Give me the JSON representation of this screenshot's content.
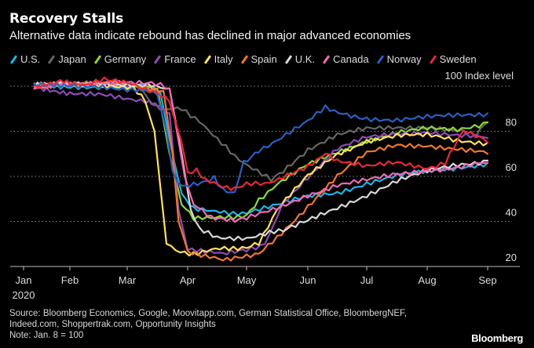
{
  "header": {
    "title": "Recovery Stalls",
    "subtitle": "Alternative data indicate rebound has declined in major advanced economies"
  },
  "footer": {
    "source_line1": "Source: Bloomberg Economics, Google, Moovitapp.com, German Statistical Office, BloombergNEF,",
    "source_line2": "Indeed.com, Shoppertrak.com, Opportunity Insights",
    "note": "Note: Jan. 8 = 100",
    "brand": "Bloomberg"
  },
  "chart_data": {
    "type": "line",
    "title": "Recovery Stalls",
    "subtitle": "Alternative data indicate rebound has declined in major advanced economies",
    "xlabel": "",
    "ylabel": "Index level",
    "unit_label": "100 Index level",
    "x_unit": "month index (0 = Jan 1, 2020; 8 = Sep 1, 2020)",
    "x_ticks": [
      "Jan",
      "Feb",
      "Mar",
      "Apr",
      "May",
      "Jun",
      "Jul",
      "Aug",
      "Sep"
    ],
    "x_year_label": "2020",
    "y_ticks": [
      20,
      40,
      60,
      80,
      100
    ],
    "y_tick_labels": [
      "20",
      "40",
      "60",
      "80",
      "100"
    ],
    "ylim": [
      20,
      100
    ],
    "grid": "horizontal-dotted",
    "legend_position": "top",
    "series": [
      {
        "name": "U.S.",
        "color": "#1fb3e6",
        "points": [
          [
            0.23,
            100
          ],
          [
            0.8,
            100
          ],
          [
            1.5,
            100
          ],
          [
            2.0,
            100
          ],
          [
            2.3,
            100
          ],
          [
            2.55,
            97
          ],
          [
            2.75,
            70
          ],
          [
            2.9,
            52
          ],
          [
            3.1,
            46
          ],
          [
            3.4,
            44
          ],
          [
            3.7,
            44
          ],
          [
            4.0,
            44
          ],
          [
            4.5,
            47
          ],
          [
            5.0,
            51
          ],
          [
            5.5,
            53
          ],
          [
            6.0,
            57
          ],
          [
            6.5,
            60
          ],
          [
            7.0,
            62
          ],
          [
            7.5,
            64
          ],
          [
            8.0,
            66
          ]
        ]
      },
      {
        "name": "Japan",
        "color": "#666666",
        "points": [
          [
            0.23,
            100
          ],
          [
            0.8,
            101
          ],
          [
            1.5,
            101
          ],
          [
            2.0,
            100
          ],
          [
            2.2,
            99
          ],
          [
            2.4,
            92
          ],
          [
            2.6,
            89
          ],
          [
            2.9,
            90
          ],
          [
            3.2,
            85
          ],
          [
            3.5,
            76
          ],
          [
            3.8,
            69
          ],
          [
            4.1,
            64
          ],
          [
            4.4,
            58
          ],
          [
            4.6,
            62
          ],
          [
            5.0,
            72
          ],
          [
            5.5,
            78
          ],
          [
            6.0,
            81
          ],
          [
            6.5,
            82
          ],
          [
            7.0,
            82
          ],
          [
            7.5,
            80
          ],
          [
            7.8,
            78
          ],
          [
            8.0,
            84
          ]
        ]
      },
      {
        "name": "Germany",
        "color": "#8ed63b",
        "points": [
          [
            0.23,
            100
          ],
          [
            0.8,
            101
          ],
          [
            1.5,
            101
          ],
          [
            2.0,
            101
          ],
          [
            2.2,
            100
          ],
          [
            2.5,
            99
          ],
          [
            2.7,
            70
          ],
          [
            2.9,
            48
          ],
          [
            3.1,
            42
          ],
          [
            3.4,
            41
          ],
          [
            3.7,
            42
          ],
          [
            4.0,
            43
          ],
          [
            4.2,
            50
          ],
          [
            4.5,
            56
          ],
          [
            5.0,
            65
          ],
          [
            5.5,
            71
          ],
          [
            6.0,
            76
          ],
          [
            6.5,
            79
          ],
          [
            7.0,
            81
          ],
          [
            7.5,
            81
          ],
          [
            8.0,
            84
          ]
        ]
      },
      {
        "name": "France",
        "color": "#8e4ab8",
        "points": [
          [
            0.23,
            100
          ],
          [
            0.5,
            99
          ],
          [
            1.0,
            97
          ],
          [
            1.5,
            96
          ],
          [
            2.0,
            94
          ],
          [
            2.3,
            94
          ],
          [
            2.5,
            92
          ],
          [
            2.7,
            88
          ],
          [
            2.85,
            45
          ],
          [
            3.0,
            28
          ],
          [
            3.3,
            26
          ],
          [
            3.6,
            26
          ],
          [
            4.0,
            27
          ],
          [
            4.3,
            30
          ],
          [
            4.6,
            48
          ],
          [
            5.0,
            60
          ],
          [
            5.5,
            72
          ],
          [
            6.0,
            77
          ],
          [
            6.5,
            79
          ],
          [
            7.0,
            80
          ],
          [
            7.5,
            78
          ],
          [
            8.0,
            77
          ]
        ]
      },
      {
        "name": "Italy",
        "color": "#ffe066",
        "points": [
          [
            0.23,
            100
          ],
          [
            0.8,
            101
          ],
          [
            1.5,
            101
          ],
          [
            2.0,
            100
          ],
          [
            2.1,
            99
          ],
          [
            2.3,
            93
          ],
          [
            2.45,
            80
          ],
          [
            2.55,
            55
          ],
          [
            2.65,
            30
          ],
          [
            2.8,
            27
          ],
          [
            3.1,
            26
          ],
          [
            3.4,
            27
          ],
          [
            3.7,
            28
          ],
          [
            4.0,
            29
          ],
          [
            4.2,
            31
          ],
          [
            4.5,
            45
          ],
          [
            5.0,
            60
          ],
          [
            5.5,
            70
          ],
          [
            6.0,
            76
          ],
          [
            6.5,
            78
          ],
          [
            7.0,
            78
          ],
          [
            7.5,
            76
          ],
          [
            8.0,
            75
          ]
        ]
      },
      {
        "name": "Spain",
        "color": "#f07830",
        "points": [
          [
            0.23,
            100
          ],
          [
            0.8,
            101
          ],
          [
            1.5,
            101
          ],
          [
            2.0,
            101
          ],
          [
            2.3,
            100
          ],
          [
            2.6,
            98
          ],
          [
            2.75,
            70
          ],
          [
            2.85,
            40
          ],
          [
            3.0,
            27
          ],
          [
            3.3,
            24
          ],
          [
            3.6,
            23
          ],
          [
            4.0,
            24
          ],
          [
            4.2,
            25
          ],
          [
            4.5,
            33
          ],
          [
            5.0,
            47
          ],
          [
            5.5,
            60
          ],
          [
            6.0,
            70
          ],
          [
            6.5,
            74
          ],
          [
            7.0,
            74
          ],
          [
            7.5,
            72
          ],
          [
            8.0,
            70
          ]
        ]
      },
      {
        "name": "U.K.",
        "color": "#d9d9d9",
        "points": [
          [
            0.23,
            100
          ],
          [
            0.8,
            101
          ],
          [
            1.5,
            101
          ],
          [
            2.0,
            101
          ],
          [
            2.4,
            101
          ],
          [
            2.7,
            99
          ],
          [
            2.9,
            70
          ],
          [
            3.05,
            45
          ],
          [
            3.2,
            36
          ],
          [
            3.5,
            33
          ],
          [
            4.0,
            33
          ],
          [
            4.3,
            34
          ],
          [
            4.6,
            36
          ],
          [
            5.0,
            40
          ],
          [
            5.5,
            46
          ],
          [
            6.0,
            52
          ],
          [
            6.5,
            58
          ],
          [
            7.0,
            62
          ],
          [
            7.5,
            65
          ],
          [
            8.0,
            67
          ]
        ]
      },
      {
        "name": "Canada",
        "color": "#f06ab4",
        "points": [
          [
            0.23,
            100
          ],
          [
            0.8,
            101
          ],
          [
            1.5,
            101
          ],
          [
            2.0,
            101
          ],
          [
            2.4,
            101
          ],
          [
            2.7,
            99
          ],
          [
            2.95,
            60
          ],
          [
            3.1,
            47
          ],
          [
            3.4,
            42
          ],
          [
            3.8,
            40
          ],
          [
            4.0,
            41
          ],
          [
            4.5,
            46
          ],
          [
            5.0,
            52
          ],
          [
            5.5,
            56
          ],
          [
            6.0,
            58
          ],
          [
            6.5,
            61
          ],
          [
            7.0,
            63
          ],
          [
            7.5,
            64
          ],
          [
            8.0,
            66
          ]
        ]
      },
      {
        "name": "Norway",
        "color": "#2a5fc0",
        "points": [
          [
            0.23,
            100
          ],
          [
            0.8,
            100
          ],
          [
            1.5,
            100
          ],
          [
            2.0,
            99
          ],
          [
            2.3,
            98
          ],
          [
            2.5,
            96
          ],
          [
            2.65,
            80
          ],
          [
            2.75,
            62
          ],
          [
            2.9,
            56
          ],
          [
            3.1,
            57
          ],
          [
            3.3,
            58
          ],
          [
            3.45,
            60
          ],
          [
            3.6,
            54
          ],
          [
            3.8,
            53
          ],
          [
            3.95,
            66
          ],
          [
            4.2,
            72
          ],
          [
            4.5,
            76
          ],
          [
            5.0,
            84
          ],
          [
            5.3,
            91
          ],
          [
            5.6,
            88
          ],
          [
            6.0,
            86
          ],
          [
            6.5,
            85
          ],
          [
            7.0,
            86
          ],
          [
            7.5,
            87
          ],
          [
            8.0,
            88
          ]
        ]
      },
      {
        "name": "Sweden",
        "color": "#e8283a",
        "points": [
          [
            0.23,
            100
          ],
          [
            0.5,
            101
          ],
          [
            0.8,
            103
          ],
          [
            1.0,
            102
          ],
          [
            1.3,
            100
          ],
          [
            1.6,
            103
          ],
          [
            1.8,
            102
          ],
          [
            2.0,
            101
          ],
          [
            2.3,
            99
          ],
          [
            2.5,
            97
          ],
          [
            2.7,
            93
          ],
          [
            2.9,
            75
          ],
          [
            3.0,
            62
          ],
          [
            3.15,
            63
          ],
          [
            3.3,
            58
          ],
          [
            3.6,
            55
          ],
          [
            3.8,
            54
          ],
          [
            4.0,
            56
          ],
          [
            4.3,
            57
          ],
          [
            4.6,
            60
          ],
          [
            5.0,
            65
          ],
          [
            5.3,
            70
          ],
          [
            5.5,
            67
          ],
          [
            6.0,
            64
          ],
          [
            6.5,
            66
          ],
          [
            7.0,
            64
          ],
          [
            7.3,
            66
          ],
          [
            7.6,
            80
          ],
          [
            8.0,
            75
          ]
        ]
      }
    ]
  }
}
